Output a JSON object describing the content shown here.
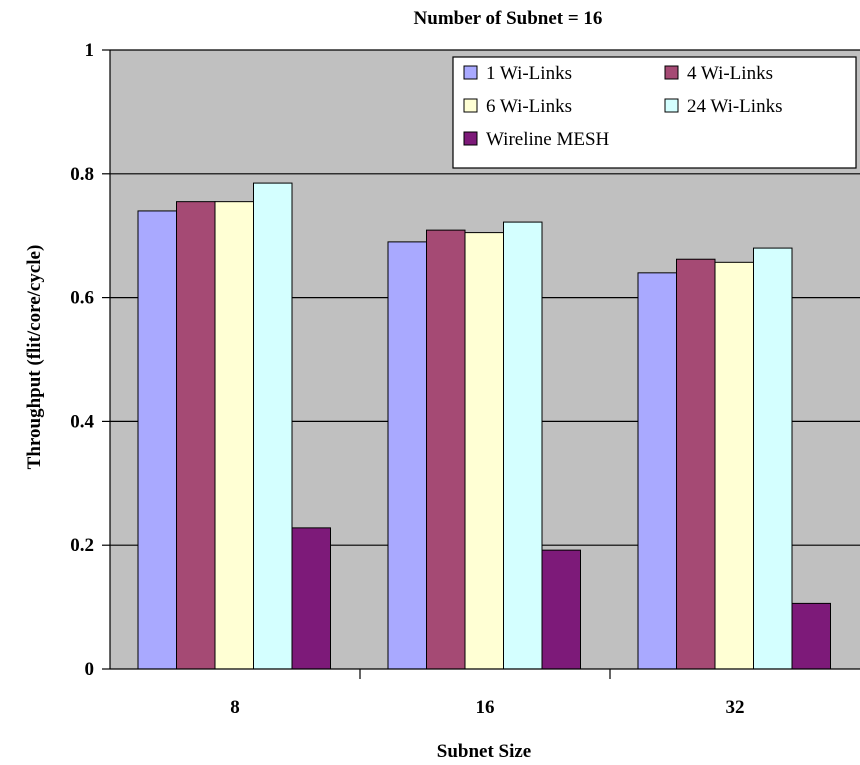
{
  "chart_data": {
    "type": "bar",
    "title": "Number of Subnet = 16",
    "xlabel": "Subnet Size",
    "ylabel": "Throughput (flit/core/cycle)",
    "categories": [
      "8",
      "16",
      "32"
    ],
    "ylim": [
      0,
      1
    ],
    "yticks": [
      "0",
      "0.2",
      "0.4",
      "0.6",
      "0.8",
      "1"
    ],
    "grid": true,
    "legend_position": "top-right",
    "series": [
      {
        "name": "1 Wi-Links",
        "color": "#a9a9ff",
        "values": [
          0.74,
          0.69,
          0.64
        ]
      },
      {
        "name": "4 Wi-Links",
        "color": "#a54a74",
        "values": [
          0.755,
          0.709,
          0.662
        ]
      },
      {
        "name": "6 Wi-Links",
        "color": "#ffffd4",
        "values": [
          0.755,
          0.705,
          0.657
        ]
      },
      {
        "name": "24 Wi-Links",
        "color": "#d4ffff",
        "values": [
          0.785,
          0.722,
          0.68
        ]
      },
      {
        "name": "Wireline MESH",
        "color": "#7d1a79",
        "values": [
          0.228,
          0.192,
          0.106
        ]
      }
    ],
    "colors": {
      "plot_background": "#c0c0c0",
      "gridline": "#000000"
    }
  }
}
